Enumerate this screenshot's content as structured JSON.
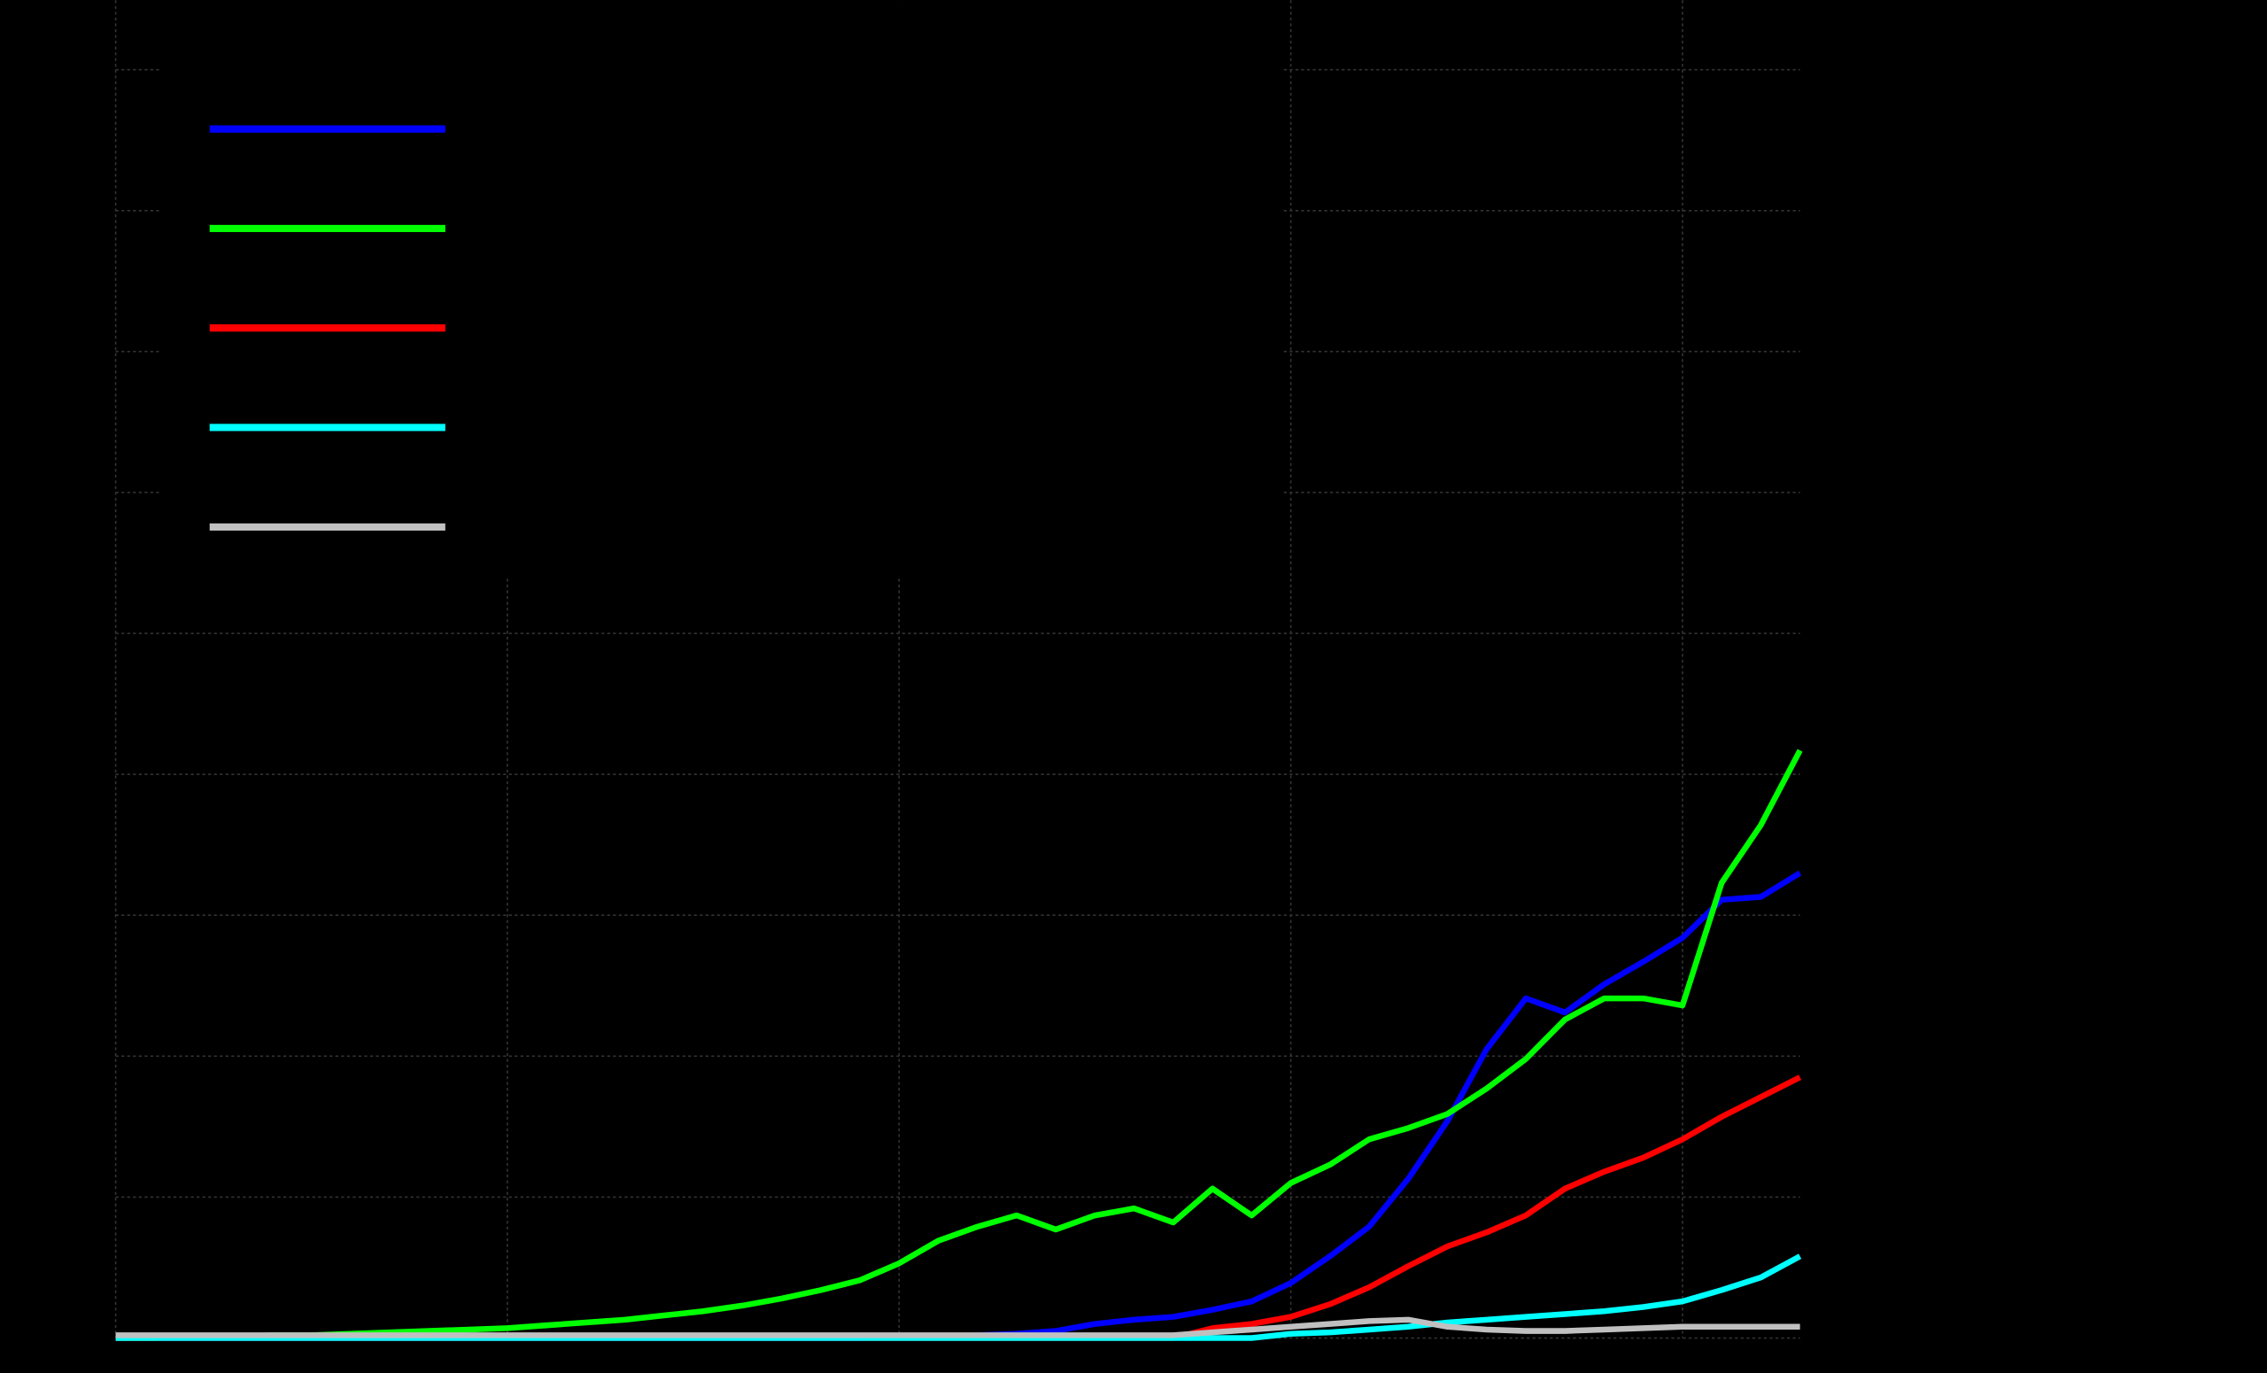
{
  "chart_data": {
    "type": "line",
    "x": [
      0,
      1,
      2,
      3,
      4,
      5,
      6,
      7,
      8,
      9,
      10,
      11,
      12,
      13,
      14,
      15,
      16,
      17,
      18,
      19,
      20,
      21,
      22,
      23,
      24,
      25,
      26,
      27,
      28,
      29,
      30,
      31,
      32,
      33,
      34,
      35,
      36,
      37,
      38,
      39,
      40,
      41,
      42,
      43
    ],
    "xlim": [
      0,
      43
    ],
    "xticks": [
      0,
      10,
      20,
      30,
      40
    ],
    "ylim": [
      0,
      9
    ],
    "yticks": [
      0,
      1,
      2,
      3,
      4,
      5,
      6,
      7,
      8,
      9
    ],
    "grid": true,
    "legend": "upper left",
    "series": [
      {
        "color": "#0000ff",
        "values": [
          0,
          0,
          0,
          0,
          0,
          0,
          0,
          0,
          0,
          0,
          0,
          0,
          0,
          0,
          0,
          0,
          0,
          0,
          0,
          0,
          0.01,
          0.01,
          0.02,
          0.03,
          0.05,
          0.1,
          0.13,
          0.15,
          0.2,
          0.26,
          0.39,
          0.58,
          0.79,
          1.13,
          1.54,
          2.05,
          2.41,
          2.31,
          2.51,
          2.67,
          2.84,
          3.11,
          3.13,
          3.3
        ]
      },
      {
        "color": "#00ff00",
        "values": [
          0,
          0,
          0.01,
          0.01,
          0.02,
          0.02,
          0.03,
          0.04,
          0.05,
          0.06,
          0.07,
          0.09,
          0.11,
          0.13,
          0.16,
          0.19,
          0.23,
          0.28,
          0.34,
          0.41,
          0.53,
          0.69,
          0.79,
          0.87,
          0.77,
          0.87,
          0.92,
          0.82,
          1.06,
          0.87,
          1.1,
          1.23,
          1.41,
          1.49,
          1.59,
          1.77,
          1.98,
          2.26,
          2.41,
          2.41,
          2.36,
          3.23,
          3.64,
          4.17
        ]
      },
      {
        "color": "#ff0000",
        "values": [
          0,
          0,
          0,
          0,
          0,
          0,
          0,
          0,
          0,
          0,
          0,
          0,
          0,
          0,
          0,
          0,
          0,
          0,
          0,
          0,
          0,
          0,
          0,
          0,
          0,
          0,
          0,
          0,
          0.07,
          0.1,
          0.15,
          0.24,
          0.36,
          0.51,
          0.65,
          0.75,
          0.87,
          1.06,
          1.18,
          1.28,
          1.41,
          1.57,
          1.71,
          1.85
        ]
      },
      {
        "color": "#00ffff",
        "values": [
          0,
          0,
          0,
          0,
          0,
          0,
          0,
          0,
          0,
          0,
          0,
          0,
          0,
          0,
          0,
          0,
          0,
          0,
          0,
          0,
          0,
          0,
          0,
          0,
          0,
          0,
          0,
          0,
          0,
          0,
          0.03,
          0.04,
          0.06,
          0.08,
          0.11,
          0.13,
          0.15,
          0.17,
          0.19,
          0.22,
          0.26,
          0.34,
          0.43,
          0.58
        ]
      },
      {
        "color": "#c0c0c0",
        "values": [
          0.02,
          0.02,
          0.02,
          0.02,
          0.02,
          0.02,
          0.02,
          0.02,
          0.02,
          0.02,
          0.02,
          0.02,
          0.02,
          0.02,
          0.02,
          0.02,
          0.02,
          0.02,
          0.02,
          0.02,
          0.02,
          0.02,
          0.02,
          0.02,
          0.02,
          0.02,
          0.02,
          0.02,
          0.04,
          0.06,
          0.08,
          0.1,
          0.12,
          0.13,
          0.08,
          0.06,
          0.05,
          0.05,
          0.06,
          0.07,
          0.08,
          0.08,
          0.08,
          0.08
        ]
      }
    ]
  }
}
